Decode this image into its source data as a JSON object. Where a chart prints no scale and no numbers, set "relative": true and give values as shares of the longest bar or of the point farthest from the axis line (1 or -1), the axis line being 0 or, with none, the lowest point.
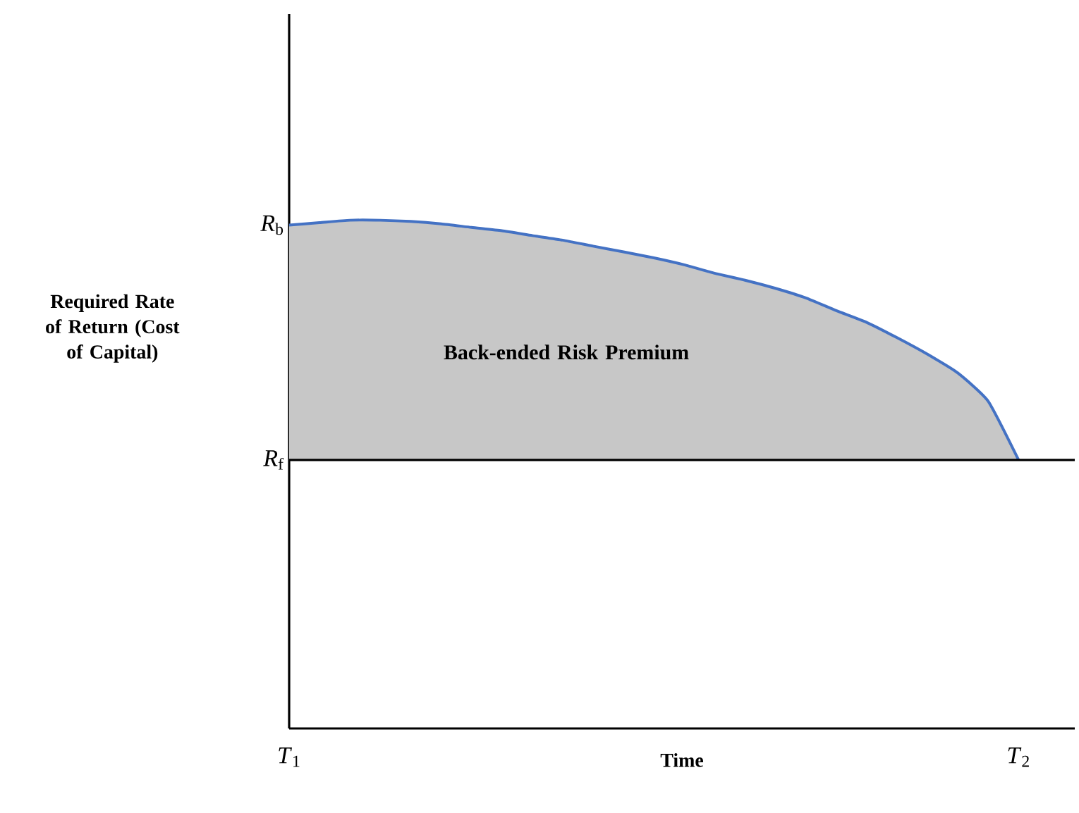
{
  "chart_data": {
    "type": "area",
    "relative": true,
    "xlabel": "Time",
    "ylabel": "Required Rate of Return (Cost of Capital)",
    "categories": [
      "*T*$_{1}$",
      null,
      null,
      null,
      null,
      null,
      null,
      null,
      null,
      null,
      null,
      null,
      null,
      null,
      null,
      null,
      null,
      null,
      null,
      null,
      null,
      null,
      null,
      null,
      "*T*$_{2}$"
    ],
    "series": [
      {
        "color": "#4472c4",
        "values": [
          0.98,
          0.99,
          1,
          1,
          0.995,
          0.985,
          0.97,
          0.956,
          0.936,
          0.917,
          0.892,
          0.868,
          0.843,
          0.814,
          0.779,
          0.75,
          0.716,
          0.676,
          0.623,
          0.574,
          0.51,
          0.441,
          0.363,
          0.245,
          0
        ]
      }
    ],
    "annotations": [
      "Back-ended Risk Premium",
      "*R*$_{b}$",
      "*R*$_{f}$"
    ]
  }
}
